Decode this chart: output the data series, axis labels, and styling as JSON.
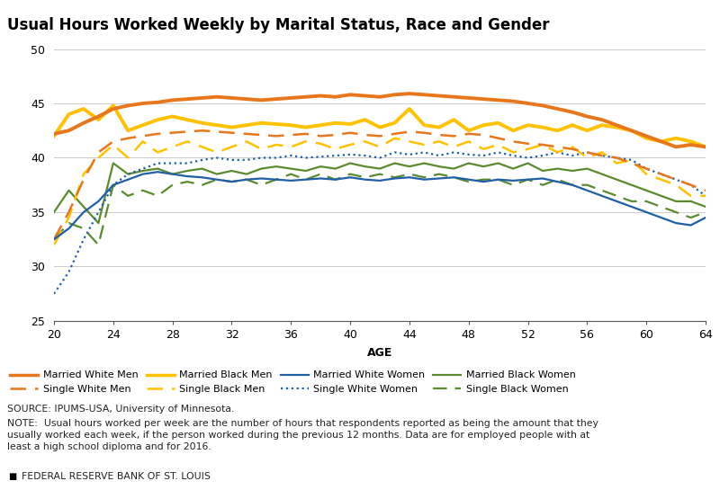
{
  "title": "Usual Hours Worked Weekly by Marital Status, Race and Gender",
  "xlabel": "AGE",
  "ylim": [
    25,
    50
  ],
  "yticks": [
    25,
    30,
    35,
    40,
    45,
    50
  ],
  "ages": [
    20,
    21,
    22,
    23,
    24,
    25,
    26,
    27,
    28,
    29,
    30,
    31,
    32,
    33,
    34,
    35,
    36,
    37,
    38,
    39,
    40,
    41,
    42,
    43,
    44,
    45,
    46,
    47,
    48,
    49,
    50,
    51,
    52,
    53,
    54,
    55,
    56,
    57,
    58,
    59,
    60,
    61,
    62,
    63,
    64
  ],
  "married_white_men": [
    42.2,
    42.5,
    43.2,
    43.8,
    44.5,
    44.8,
    45.0,
    45.1,
    45.3,
    45.4,
    45.5,
    45.6,
    45.5,
    45.4,
    45.3,
    45.4,
    45.5,
    45.6,
    45.7,
    45.6,
    45.8,
    45.7,
    45.6,
    45.8,
    45.9,
    45.8,
    45.7,
    45.6,
    45.5,
    45.4,
    45.3,
    45.2,
    45.0,
    44.8,
    44.5,
    44.2,
    43.8,
    43.5,
    43.0,
    42.5,
    42.0,
    41.5,
    41.0,
    41.2,
    41.0
  ],
  "single_white_men": [
    32.5,
    35.0,
    38.0,
    40.5,
    41.5,
    41.8,
    42.0,
    42.2,
    42.3,
    42.4,
    42.5,
    42.4,
    42.3,
    42.2,
    42.1,
    42.0,
    42.1,
    42.2,
    42.0,
    42.1,
    42.3,
    42.1,
    42.0,
    42.2,
    42.4,
    42.3,
    42.1,
    42.0,
    42.2,
    42.1,
    41.8,
    41.5,
    41.3,
    41.2,
    41.0,
    40.8,
    40.5,
    40.2,
    40.0,
    39.5,
    39.0,
    38.5,
    38.0,
    37.5,
    37.0
  ],
  "married_black_men": [
    42.0,
    44.0,
    44.5,
    43.5,
    44.8,
    42.5,
    43.0,
    43.5,
    43.8,
    43.5,
    43.2,
    43.0,
    42.8,
    43.0,
    43.2,
    43.1,
    43.0,
    42.8,
    43.0,
    43.2,
    43.1,
    43.5,
    42.8,
    43.2,
    44.5,
    43.0,
    42.8,
    43.5,
    42.5,
    43.0,
    43.2,
    42.5,
    43.0,
    42.8,
    42.5,
    43.0,
    42.5,
    43.0,
    42.8,
    42.5,
    41.8,
    41.5,
    41.8,
    41.5,
    41.0
  ],
  "single_black_men": [
    32.0,
    34.5,
    38.5,
    40.0,
    41.2,
    40.0,
    41.5,
    40.5,
    41.0,
    41.5,
    41.0,
    40.5,
    41.0,
    41.5,
    40.8,
    41.2,
    41.0,
    41.5,
    41.3,
    40.8,
    41.2,
    41.5,
    41.0,
    41.8,
    41.5,
    41.2,
    41.5,
    41.0,
    41.5,
    40.8,
    41.2,
    40.5,
    40.8,
    41.2,
    40.5,
    41.0,
    40.0,
    40.5,
    39.5,
    39.8,
    38.5,
    38.0,
    37.5,
    36.5,
    36.5
  ],
  "married_white_women": [
    32.5,
    33.5,
    35.0,
    36.0,
    37.5,
    38.0,
    38.5,
    38.7,
    38.5,
    38.3,
    38.2,
    38.0,
    37.8,
    38.0,
    38.1,
    38.0,
    37.9,
    38.0,
    38.1,
    38.0,
    38.2,
    38.0,
    37.9,
    38.1,
    38.2,
    38.0,
    38.1,
    38.2,
    38.0,
    37.8,
    38.0,
    37.9,
    38.0,
    38.1,
    37.8,
    37.5,
    37.0,
    36.5,
    36.0,
    35.5,
    35.0,
    34.5,
    34.0,
    33.8,
    34.5
  ],
  "single_white_women": [
    27.5,
    29.5,
    32.5,
    35.0,
    37.5,
    38.5,
    39.0,
    39.5,
    39.5,
    39.5,
    39.8,
    40.0,
    39.8,
    39.8,
    40.0,
    40.0,
    40.2,
    40.0,
    40.1,
    40.2,
    40.3,
    40.2,
    40.0,
    40.5,
    40.3,
    40.5,
    40.2,
    40.5,
    40.3,
    40.2,
    40.5,
    40.2,
    40.0,
    40.2,
    40.5,
    40.2,
    40.5,
    40.2,
    40.0,
    39.8,
    39.0,
    38.5,
    38.0,
    37.5,
    36.5
  ],
  "married_black_women": [
    35.0,
    37.0,
    35.5,
    34.0,
    39.5,
    38.5,
    38.8,
    39.0,
    38.5,
    38.8,
    39.0,
    38.5,
    38.8,
    38.5,
    39.0,
    39.2,
    39.0,
    38.8,
    39.2,
    39.0,
    39.5,
    39.2,
    39.0,
    39.5,
    39.2,
    39.5,
    39.2,
    39.0,
    39.5,
    39.2,
    39.5,
    39.0,
    39.5,
    38.8,
    39.0,
    38.8,
    39.0,
    38.5,
    38.0,
    37.5,
    37.0,
    36.5,
    36.0,
    36.0,
    35.5
  ],
  "single_black_women": [
    32.5,
    34.0,
    33.5,
    32.0,
    37.5,
    36.5,
    37.0,
    36.5,
    37.5,
    37.8,
    37.5,
    38.0,
    37.8,
    38.0,
    37.5,
    38.0,
    38.5,
    38.0,
    38.5,
    38.0,
    38.5,
    38.2,
    38.5,
    38.2,
    38.5,
    38.2,
    38.5,
    38.2,
    37.8,
    38.0,
    38.0,
    37.5,
    38.0,
    37.5,
    38.0,
    37.5,
    37.5,
    37.0,
    36.5,
    36.0,
    36.0,
    35.5,
    35.0,
    34.5,
    35.0
  ],
  "source_text": "SOURCE: IPUMS-USA, University of Minnesota.",
  "note_text": "NOTE:  Usual hours worked per week are the number of hours that respondents reported as being the amount that they\nusually worked each week, if the person worked during the previous 12 months. Data are for employed people with at\nleast a high school diploma and for 2016.",
  "fed_text": "FEDERAL RESERVE BANK OF ST. LOUIS",
  "background_color": "#ffffff",
  "grid_color": "#cccccc",
  "orange": "#E8761A",
  "yellow": "#FFC200",
  "blue": "#1F5FA6",
  "green": "#5B8B2E",
  "xtick_labels": [
    "20",
    "24",
    "28",
    "32",
    "36",
    "40",
    "44",
    "48",
    "52",
    "56",
    "60",
    "64"
  ],
  "xtick_positions": [
    20,
    24,
    28,
    32,
    36,
    40,
    44,
    48,
    52,
    56,
    60,
    64
  ]
}
